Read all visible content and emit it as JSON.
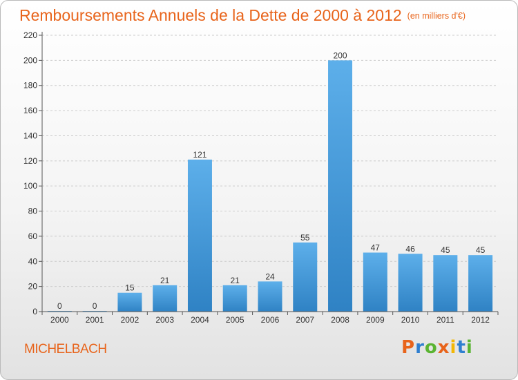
{
  "header": {
    "title": "Remboursements Annuels de la Dette de 2000 à 2012",
    "unit": "(en milliers d'€)"
  },
  "footer": {
    "town": "MICHELBACH",
    "logo_text": "Proxiti",
    "logo_colors": [
      "#e8641b",
      "#2e7fd0",
      "#5ab432",
      "#e8641b",
      "#f2b705",
      "#2e7fd0",
      "#5ab432"
    ]
  },
  "colors": {
    "bar_light": "#5dafea",
    "bar_dark": "#2f82c4",
    "accent": "#e8641b",
    "grid": "#cccccc"
  },
  "chart_data": {
    "type": "bar",
    "title": "Remboursements Annuels de la Dette de 2000 à 2012",
    "xlabel": "",
    "ylabel": "",
    "categories": [
      "2000",
      "2001",
      "2002",
      "2003",
      "2004",
      "2005",
      "2006",
      "2007",
      "2008",
      "2009",
      "2010",
      "2011",
      "2012"
    ],
    "values": [
      0,
      0,
      15,
      21,
      121,
      21,
      24,
      55,
      200,
      47,
      46,
      45,
      45
    ],
    "data_labels": [
      "0",
      "0",
      "15",
      "21",
      "121",
      "21",
      "24",
      "55",
      "200",
      "47",
      "46",
      "45",
      "45"
    ],
    "ylim": [
      0,
      220
    ],
    "yticks": [
      0,
      20,
      40,
      60,
      80,
      100,
      120,
      140,
      160,
      180,
      200,
      220
    ],
    "grid": true,
    "legend": "none"
  }
}
